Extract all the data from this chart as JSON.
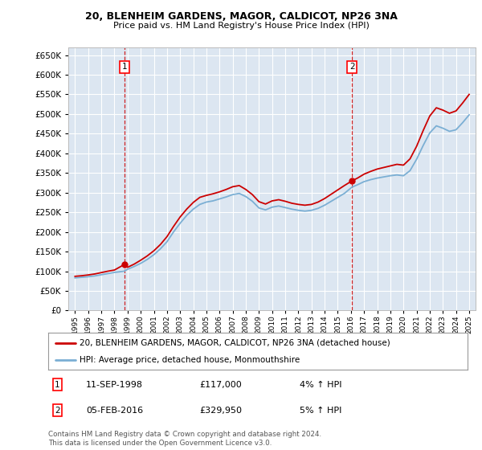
{
  "title1": "20, BLENHEIM GARDENS, MAGOR, CALDICOT, NP26 3NA",
  "title2": "Price paid vs. HM Land Registry's House Price Index (HPI)",
  "legend_line1": "20, BLENHEIM GARDENS, MAGOR, CALDICOT, NP26 3NA (detached house)",
  "legend_line2": "HPI: Average price, detached house, Monmouthshire",
  "annotation1_date": "11-SEP-1998",
  "annotation1_price": "£117,000",
  "annotation1_hpi": "4% ↑ HPI",
  "annotation2_date": "05-FEB-2016",
  "annotation2_price": "£329,950",
  "annotation2_hpi": "5% ↑ HPI",
  "footnote": "Contains HM Land Registry data © Crown copyright and database right 2024.\nThis data is licensed under the Open Government Licence v3.0.",
  "ylim_min": 0,
  "ylim_max": 670000,
  "sale1_year": 1998.75,
  "sale1_price": 117000,
  "sale2_year": 2016.08,
  "sale2_price": 329950,
  "bg_color": "#dce6f1",
  "red_color": "#cc0000",
  "blue_color": "#7bafd4",
  "years": [
    1995.0,
    1995.5,
    1996.0,
    1996.5,
    1997.0,
    1997.5,
    1998.0,
    1998.75,
    1999.0,
    1999.5,
    2000.0,
    2000.5,
    2001.0,
    2001.5,
    2002.0,
    2002.5,
    2003.0,
    2003.5,
    2004.0,
    2004.5,
    2005.0,
    2005.5,
    2006.0,
    2006.5,
    2007.0,
    2007.5,
    2008.0,
    2008.5,
    2009.0,
    2009.5,
    2010.0,
    2010.5,
    2011.0,
    2011.5,
    2012.0,
    2012.5,
    2013.0,
    2013.5,
    2014.0,
    2014.5,
    2015.0,
    2015.5,
    2016.08,
    2016.5,
    2017.0,
    2017.5,
    2018.0,
    2018.5,
    2019.0,
    2019.5,
    2020.0,
    2020.5,
    2021.0,
    2021.5,
    2022.0,
    2022.5,
    2023.0,
    2023.5,
    2024.0,
    2024.5,
    2025.0
  ],
  "hpi_values": [
    83000,
    84500,
    86000,
    88000,
    91000,
    94000,
    97000,
    100000,
    105000,
    112000,
    120000,
    130000,
    142000,
    157000,
    175000,
    200000,
    222000,
    242000,
    258000,
    270000,
    276000,
    279000,
    284000,
    289000,
    295000,
    298000,
    290000,
    278000,
    261000,
    256000,
    263000,
    266000,
    262000,
    258000,
    255000,
    253000,
    255000,
    260000,
    268000,
    278000,
    288000,
    298000,
    314000,
    320000,
    328000,
    333000,
    337000,
    340000,
    343000,
    345000,
    343000,
    356000,
    385000,
    420000,
    452000,
    470000,
    464000,
    456000,
    460000,
    478000,
    498000
  ],
  "price_paid": [
    87000,
    88500,
    90500,
    93000,
    96500,
    100000,
    103000,
    117000,
    110000,
    118000,
    128000,
    139000,
    152000,
    168000,
    188000,
    214000,
    238000,
    258000,
    275000,
    288000,
    293000,
    297000,
    302000,
    308000,
    315000,
    318000,
    308000,
    295000,
    277000,
    271000,
    279000,
    282000,
    278000,
    273000,
    270000,
    268000,
    270000,
    276000,
    285000,
    296000,
    307000,
    318000,
    329950,
    337000,
    347000,
    354000,
    360000,
    364000,
    368000,
    372000,
    370000,
    386000,
    418000,
    458000,
    495000,
    516000,
    510000,
    502000,
    508000,
    528000,
    550000
  ]
}
